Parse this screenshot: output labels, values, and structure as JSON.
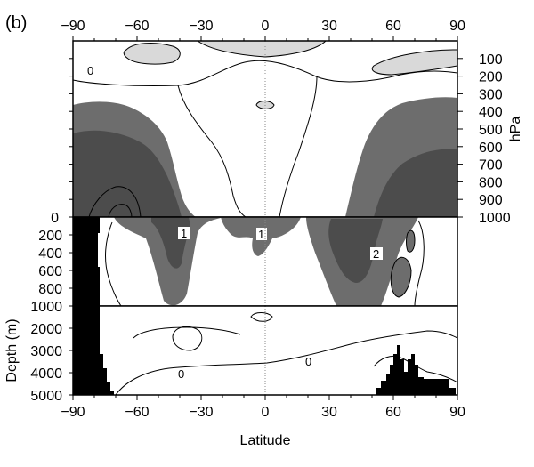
{
  "chart_data": {
    "type": "contour",
    "panel_label": "(b)",
    "x": {
      "label": "Latitude",
      "range": [
        -90,
        90
      ],
      "ticks": [
        -90,
        -60,
        -30,
        0,
        30,
        60,
        90
      ],
      "tick_labels": [
        "−90",
        "−60",
        "−30",
        "0",
        "30",
        "60",
        "90"
      ]
    },
    "atmosphere": {
      "y_unit": "hPa",
      "range": [
        0,
        1000
      ],
      "ticks": [
        100,
        200,
        300,
        400,
        500,
        600,
        700,
        800,
        900,
        1000
      ],
      "tick_labels": [
        "100",
        "200",
        "300",
        "400",
        "500",
        "600",
        "700",
        "800",
        "900",
        "1000"
      ],
      "left_label": "0",
      "contour_labels": [
        "0"
      ]
    },
    "ocean_upper": {
      "range": [
        0,
        1000
      ],
      "ticks": [
        200,
        400,
        600,
        800,
        1000
      ],
      "tick_labels": [
        "200",
        "400",
        "600",
        "800",
        "1000"
      ],
      "contour_labels": [
        "1",
        "1",
        "2"
      ]
    },
    "ocean_deep": {
      "y_label": "Depth (m)",
      "range": [
        1000,
        5000
      ],
      "ticks": [
        2000,
        3000,
        4000,
        5000
      ],
      "tick_labels": [
        "2000",
        "3000",
        "4000",
        "5000"
      ],
      "contour_labels": [
        "0",
        "0"
      ]
    },
    "legend_colors": {
      "light_fill": "#d9d9d9",
      "mid_fill": "#6d6d6d",
      "dark_fill": "#4c4c4c",
      "land": "#000000"
    }
  }
}
